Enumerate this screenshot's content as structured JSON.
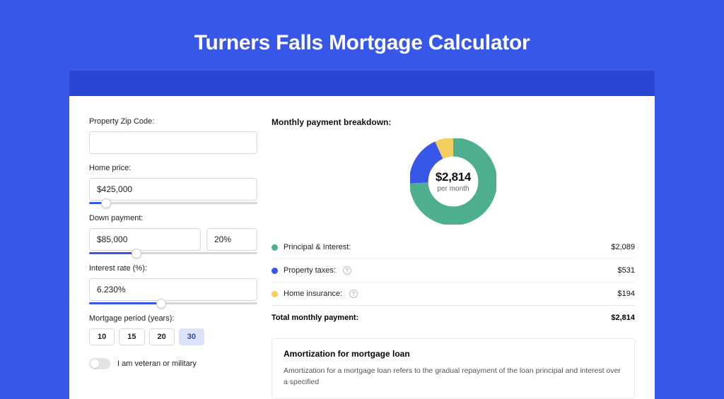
{
  "colors": {
    "page_bg": "#3757e8",
    "stripe_bg": "#2a47d4",
    "panel_bg": "#ffffff",
    "principal": "#4daf8e",
    "taxes": "#3757e8",
    "insurance": "#f4cf5f",
    "border": "#d8d8d8"
  },
  "page": {
    "title": "Turners Falls Mortgage Calculator"
  },
  "form": {
    "zip": {
      "label": "Property Zip Code:",
      "value": ""
    },
    "home_price": {
      "label": "Home price:",
      "value": "$425,000",
      "slider_pct": 10
    },
    "down_payment": {
      "label": "Down payment:",
      "value": "$85,000",
      "pct": "20%",
      "slider_pct": 28
    },
    "interest": {
      "label": "Interest rate (%):",
      "value": "6.230%",
      "slider_pct": 43
    },
    "period": {
      "label": "Mortgage period (years):",
      "options": [
        "10",
        "15",
        "20",
        "30"
      ],
      "selected": "30"
    },
    "veteran": {
      "label": "I am veteran or military",
      "checked": false
    }
  },
  "breakdown": {
    "title": "Monthly payment breakdown:",
    "donut": {
      "amount": "$2,814",
      "sub": "per month",
      "segments": [
        {
          "key": "principal",
          "pct": 74.2,
          "color": "#4daf8e"
        },
        {
          "key": "taxes",
          "pct": 18.9,
          "color": "#3757e8"
        },
        {
          "key": "insurance",
          "pct": 6.9,
          "color": "#f4cf5f"
        }
      ],
      "circumference": 251.2,
      "stroke_width": 22
    },
    "items": [
      {
        "label": "Principal & Interest:",
        "amount": "$2,089",
        "color": "#4daf8e",
        "help": false
      },
      {
        "label": "Property taxes:",
        "amount": "$531",
        "color": "#3757e8",
        "help": true
      },
      {
        "label": "Home insurance:",
        "amount": "$194",
        "color": "#f4cf5f",
        "help": true
      }
    ],
    "total": {
      "label": "Total monthly payment:",
      "amount": "$2,814"
    }
  },
  "amort": {
    "title": "Amortization for mortgage loan",
    "text": "Amortization for a mortgage loan refers to the gradual repayment of the loan principal and interest over a specified"
  }
}
